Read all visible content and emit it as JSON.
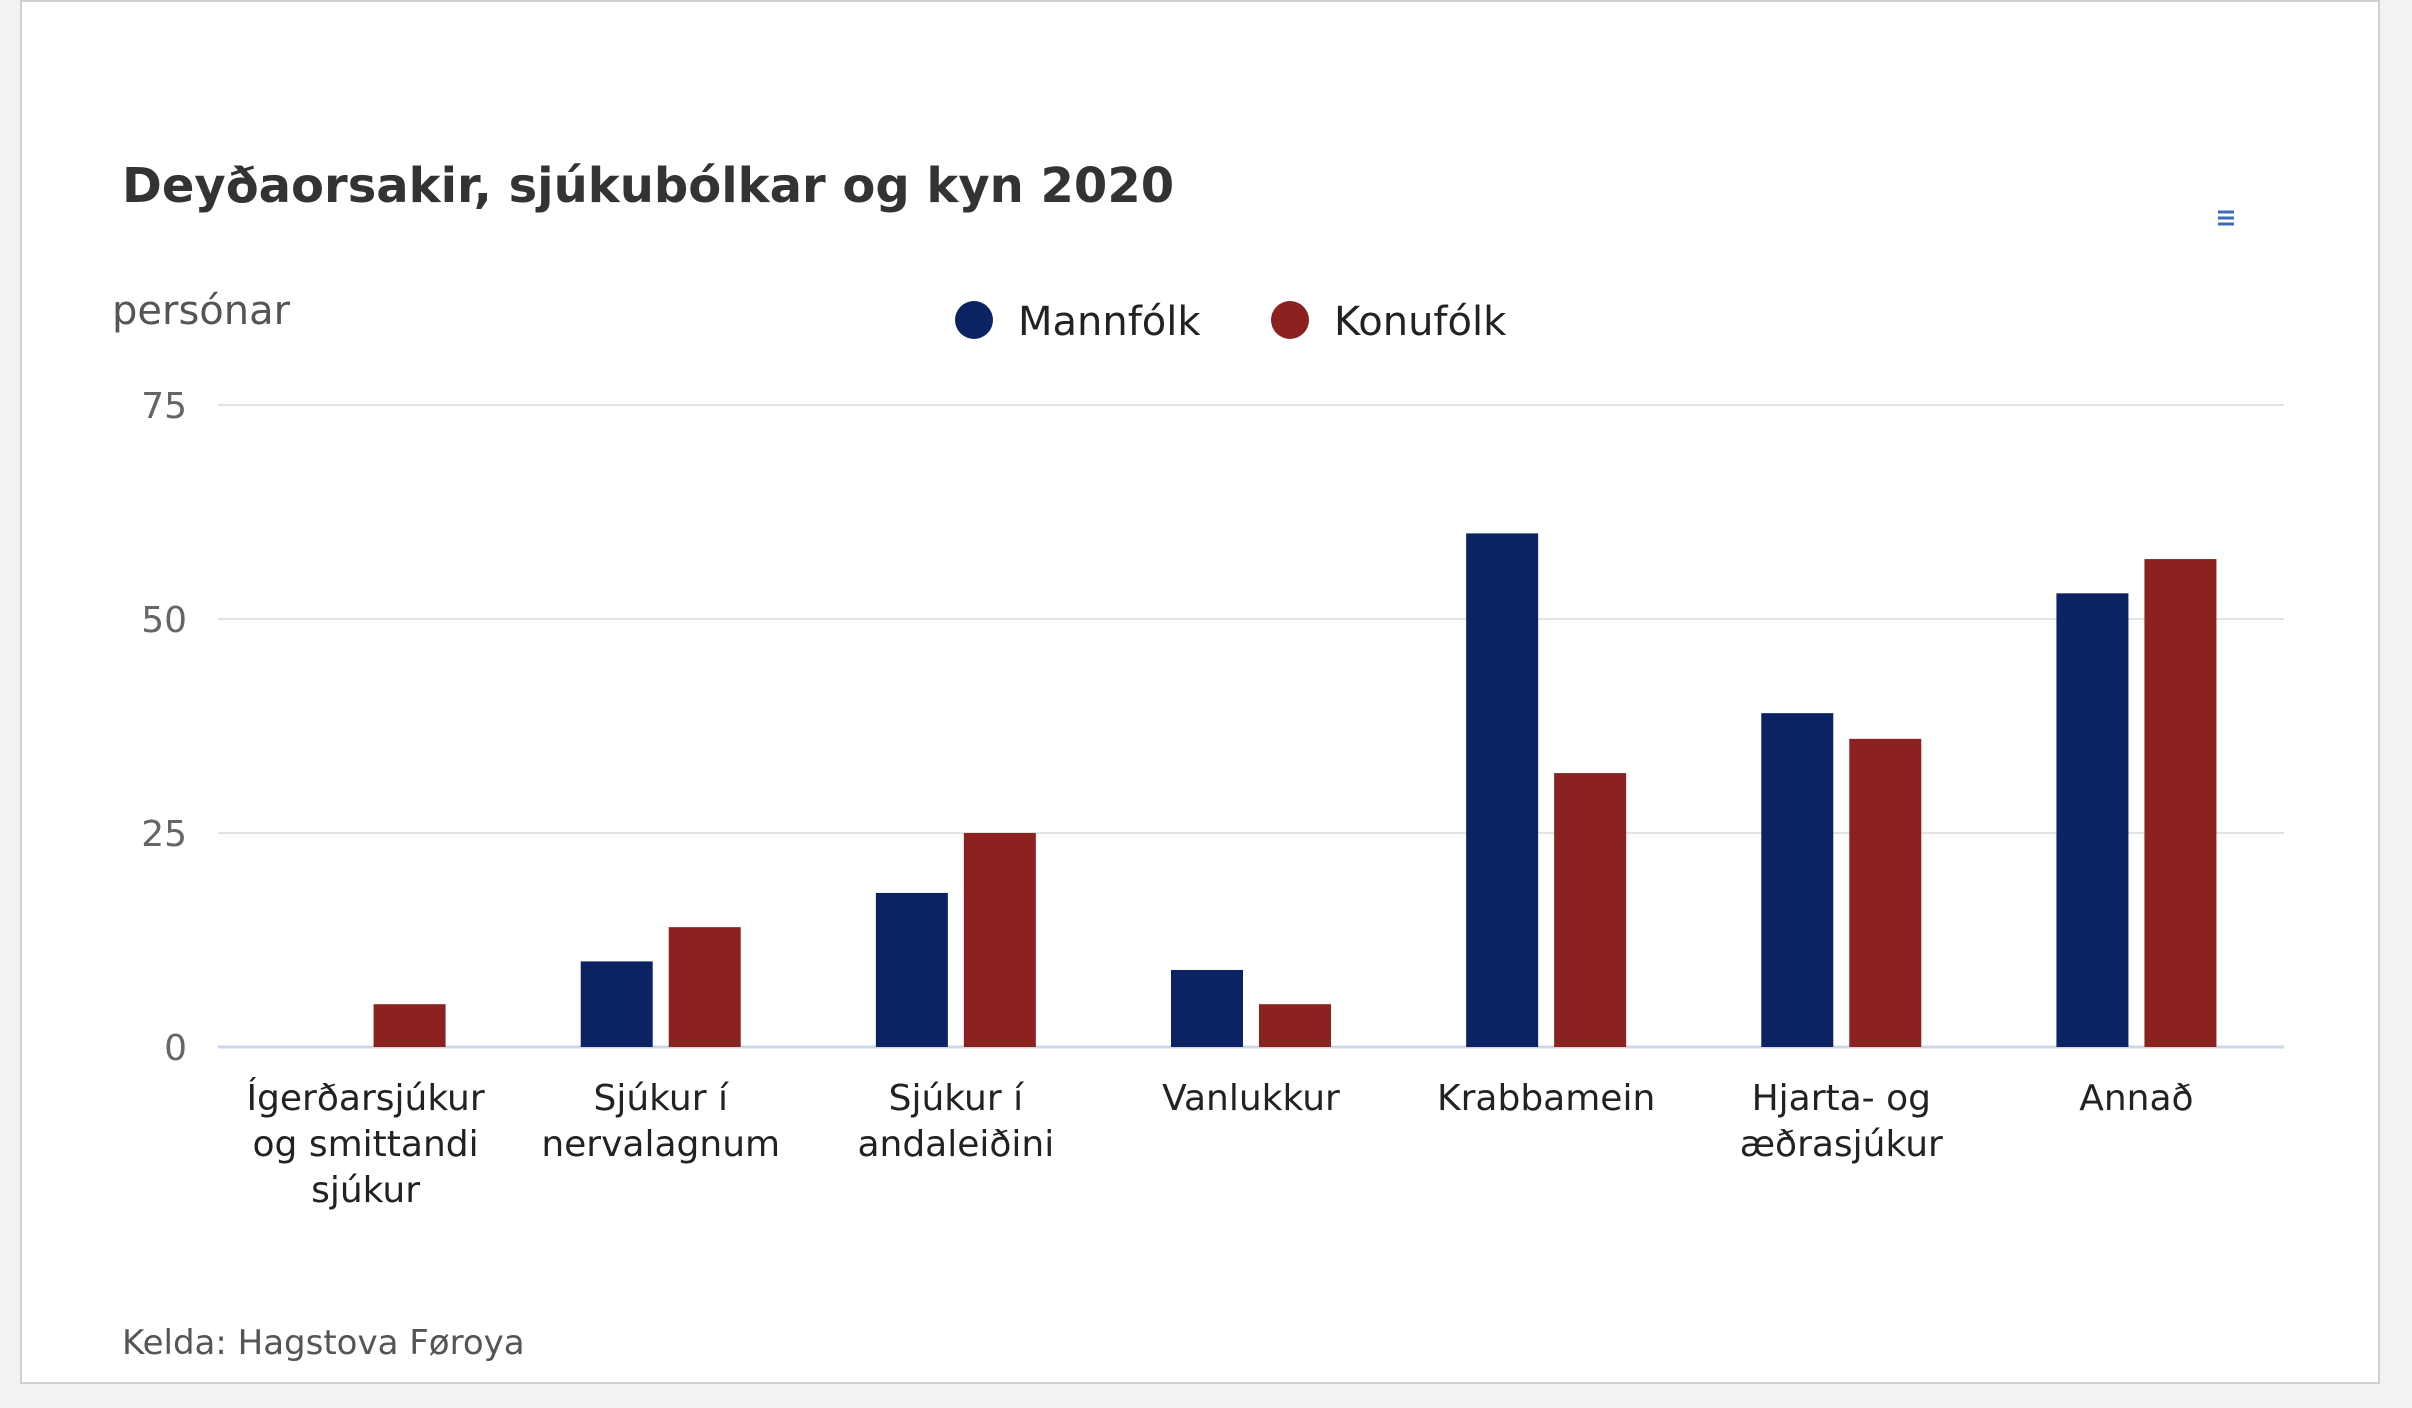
{
  "chart_data": {
    "type": "bar",
    "title": "Deyðaorsakir, sjúkubólkar og kyn 2020",
    "ylabel": "persónar",
    "xlabel": "",
    "ylim": [
      0,
      75
    ],
    "yticks": [
      "0",
      "25",
      "50",
      "75"
    ],
    "grid": true,
    "legend_position": "top-center",
    "categories": [
      [
        "Ígerðarsjúkur",
        "og smittandi",
        "sjúkur"
      ],
      [
        "Sjúkur í",
        "nervalagnum"
      ],
      [
        "Sjúkur í",
        "andaleiðini"
      ],
      [
        "Vanlukkur"
      ],
      [
        "Krabbamein"
      ],
      [
        "Hjarta- og",
        "æðrasjúkur"
      ],
      [
        "Annað"
      ]
    ],
    "series": [
      {
        "name": "Mannfólk",
        "color": "#0b2362",
        "values": [
          0,
          10,
          18,
          9,
          60,
          39,
          53
        ]
      },
      {
        "name": "Konufólk",
        "color": "#8c221f",
        "values": [
          5,
          14,
          25,
          5,
          32,
          36,
          57
        ]
      }
    ],
    "source": "Kelda: Hagstova Føroya",
    "menu_icon": "hamburger-menu-icon"
  }
}
